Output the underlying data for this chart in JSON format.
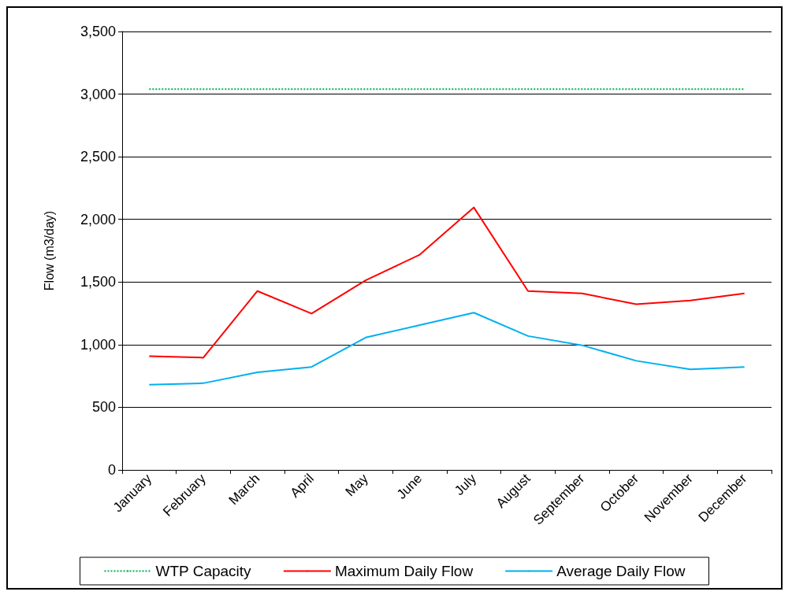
{
  "chart_data": {
    "type": "line",
    "ylabel": "Flow (m3/day)",
    "categories": [
      "January",
      "February",
      "March",
      "April",
      "May",
      "June",
      "July",
      "August",
      "September",
      "October",
      "November",
      "December"
    ],
    "series": [
      {
        "name": "WTP Capacity",
        "color": "#00b050",
        "line_style": "dotted",
        "values": [
          3040,
          3040,
          3040,
          3040,
          3040,
          3040,
          3040,
          3040,
          3040,
          3040,
          3040,
          3040
        ]
      },
      {
        "name": "Maximum Daily Flow",
        "color": "#ff0000",
        "line_style": "solid",
        "values": [
          908,
          896,
          1428,
          1248,
          1514,
          1718,
          2095,
          1428,
          1409,
          1323,
          1353,
          1409
        ]
      },
      {
        "name": "Average Daily Flow",
        "color": "#00b0f0",
        "line_style": "solid",
        "values": [
          680,
          692,
          779,
          822,
          1057,
          1156,
          1255,
          1069,
          995,
          871,
          803,
          822
        ]
      }
    ],
    "ylim": [
      0,
      3500
    ],
    "yticks": [
      0,
      500,
      {
        "value": 1000,
        "label": "1,000"
      },
      {
        "value": 1500,
        "label": "1,500"
      },
      {
        "value": 2000,
        "label": "2,000"
      },
      {
        "value": 2500,
        "label": "2,500"
      },
      {
        "value": 3000,
        "label": "3,000"
      },
      {
        "value": 3500,
        "label": "3,500"
      }
    ],
    "grid": "y",
    "legend": "bottom",
    "marker": "none"
  }
}
